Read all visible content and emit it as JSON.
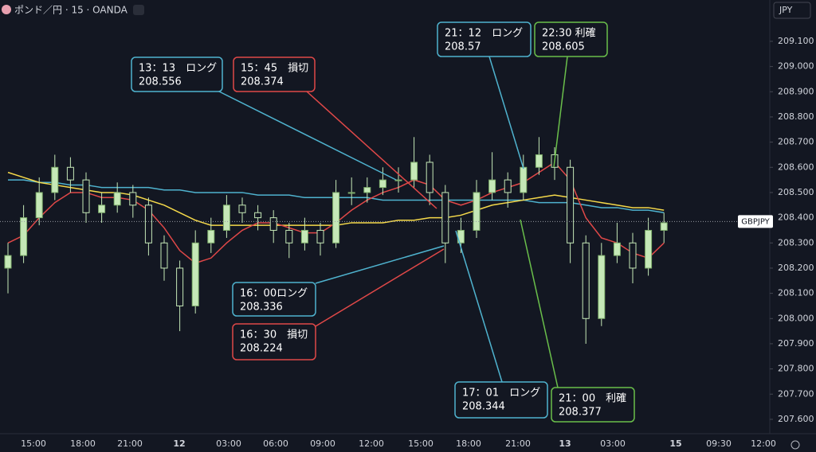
{
  "chart_data": {
    "type": "candlestick",
    "title": "ポンド／円 · 15 · OANDA",
    "currency": "JPY",
    "symbol": "GBPJPY",
    "last_price": 208.385,
    "up_color": "#c5e8b7",
    "down_color": "#c5e8b7",
    "wick_color": "#c5e8b7",
    "ylim": [
      207.543,
      209.264
    ],
    "yticks": [
      {
        "value": 209.1,
        "label": "209.100"
      },
      {
        "value": 209.0,
        "label": "209.000"
      },
      {
        "value": 208.9,
        "label": "208.900"
      },
      {
        "value": 208.8,
        "label": "208.800"
      },
      {
        "value": 208.7,
        "label": "208.700"
      },
      {
        "value": 208.6,
        "label": "208.600"
      },
      {
        "value": 208.5,
        "label": "208.500"
      },
      {
        "value": 208.4,
        "label": "208.400"
      },
      {
        "value": 208.3,
        "label": "208.300"
      },
      {
        "value": 208.2,
        "label": "208.200"
      },
      {
        "value": 208.1,
        "label": "208.100"
      },
      {
        "value": 208.0,
        "label": "208.000"
      },
      {
        "value": 207.9,
        "label": "207.900"
      },
      {
        "value": 207.8,
        "label": "207.800"
      },
      {
        "value": 207.7,
        "label": "207.700"
      },
      {
        "value": 207.6,
        "label": "207.600"
      }
    ],
    "x_labels": [
      "15:00",
      "18:00",
      "21:00",
      "12",
      "03:00",
      "06:00",
      "09:00",
      "12:00",
      "15:00",
      "18:00",
      "21:00",
      "13",
      "03:00",
      "15",
      "09:30",
      "12:00"
    ],
    "open": [
      208.2,
      208.25,
      208.4,
      208.5,
      208.6,
      208.55,
      208.42,
      208.45,
      208.5,
      208.45,
      208.3,
      208.2,
      208.05,
      208.3,
      208.35,
      208.45,
      208.42,
      208.4,
      208.35,
      208.3,
      208.35,
      208.3,
      208.5,
      208.5,
      208.52,
      208.55,
      208.55,
      208.62,
      208.5,
      208.3,
      208.35,
      208.5,
      208.55,
      208.5,
      208.6,
      208.65,
      208.6,
      208.3,
      208.0,
      208.25,
      208.3,
      208.2,
      208.35
    ],
    "high": [
      208.3,
      208.45,
      208.56,
      208.65,
      208.64,
      208.58,
      208.5,
      208.54,
      208.53,
      208.48,
      208.33,
      208.23,
      208.35,
      208.4,
      208.49,
      208.48,
      208.45,
      208.43,
      208.38,
      208.4,
      208.38,
      208.55,
      208.56,
      208.56,
      208.6,
      208.6,
      208.72,
      208.65,
      208.53,
      208.4,
      208.55,
      208.66,
      208.58,
      208.65,
      208.72,
      208.68,
      208.63,
      208.33,
      208.3,
      208.38,
      208.34,
      208.4,
      208.42
    ],
    "low": [
      208.1,
      208.22,
      208.37,
      208.47,
      208.5,
      208.38,
      208.38,
      208.42,
      208.4,
      208.25,
      208.15,
      207.95,
      208.02,
      208.26,
      208.32,
      208.38,
      208.35,
      208.3,
      208.24,
      208.27,
      208.25,
      208.28,
      208.45,
      208.46,
      208.49,
      208.5,
      208.52,
      208.45,
      208.22,
      208.26,
      208.32,
      208.47,
      208.44,
      208.47,
      208.57,
      208.55,
      208.22,
      207.9,
      207.97,
      208.22,
      208.14,
      208.17,
      208.3
    ],
    "close": [
      208.25,
      208.4,
      208.5,
      208.6,
      208.55,
      208.42,
      208.45,
      208.5,
      208.45,
      208.3,
      208.2,
      208.05,
      208.3,
      208.35,
      208.45,
      208.42,
      208.4,
      208.35,
      208.3,
      208.35,
      208.3,
      208.5,
      208.5,
      208.52,
      208.55,
      208.55,
      208.62,
      208.5,
      208.3,
      208.35,
      208.5,
      208.55,
      208.5,
      208.6,
      208.65,
      208.6,
      208.3,
      208.0,
      208.25,
      208.3,
      208.2,
      208.35,
      208.38
    ],
    "series": [
      {
        "color": "#4fb3cf",
        "values": [
          208.55,
          208.55,
          208.54,
          208.54,
          208.53,
          208.53,
          208.52,
          208.52,
          208.52,
          208.52,
          208.51,
          208.51,
          208.5,
          208.5,
          208.5,
          208.5,
          208.49,
          208.49,
          208.49,
          208.48,
          208.48,
          208.48,
          208.48,
          208.48,
          208.47,
          208.47,
          208.47,
          208.47,
          208.47,
          208.47,
          208.47,
          208.47,
          208.47,
          208.47,
          208.46,
          208.46,
          208.46,
          208.45,
          208.44,
          208.44,
          208.43,
          208.43,
          208.42
        ]
      },
      {
        "color": "#f5d94a",
        "values": [
          208.58,
          208.56,
          208.54,
          208.53,
          208.52,
          208.51,
          208.5,
          208.5,
          208.49,
          208.47,
          208.45,
          208.42,
          208.39,
          208.37,
          208.37,
          208.37,
          208.37,
          208.37,
          208.37,
          208.37,
          208.37,
          208.37,
          208.38,
          208.38,
          208.38,
          208.39,
          208.39,
          208.4,
          208.4,
          208.41,
          208.43,
          208.45,
          208.46,
          208.47,
          208.48,
          208.49,
          208.48,
          208.47,
          208.46,
          208.45,
          208.44,
          208.44,
          208.43
        ]
      },
      {
        "color": "#e04848",
        "values": [
          208.3,
          208.33,
          208.4,
          208.46,
          208.5,
          208.5,
          208.48,
          208.48,
          208.47,
          208.43,
          208.36,
          208.27,
          208.22,
          208.24,
          208.3,
          208.35,
          208.38,
          208.38,
          208.36,
          208.34,
          208.34,
          208.38,
          208.43,
          208.47,
          208.5,
          208.52,
          208.55,
          208.53,
          208.47,
          208.45,
          208.47,
          208.5,
          208.52,
          208.54,
          208.58,
          208.62,
          208.55,
          208.4,
          208.32,
          208.3,
          208.26,
          208.24,
          208.3
        ]
      }
    ],
    "annotations": [
      {
        "label": "13：13　ロング",
        "price": 208.556,
        "color": "#4fb3cf"
      },
      {
        "label": "15：45　損切",
        "price": 208.374,
        "color": "#e04848"
      },
      {
        "label": "21：12　ロング",
        "price": 208.57,
        "color": "#4fb3cf"
      },
      {
        "label": "22:30 利確",
        "price": 208.605,
        "color": "#6abf4b"
      },
      {
        "label": "16：00ロング",
        "price": 208.336,
        "color": "#4fb3cf"
      },
      {
        "label": "16：30　損切",
        "price": 208.224,
        "color": "#e04848"
      },
      {
        "label": "17：01　ロング",
        "price": 208.344,
        "color": "#4fb3cf"
      },
      {
        "label": "21：00　利確",
        "price": 208.377,
        "color": "#6abf4b"
      }
    ]
  }
}
